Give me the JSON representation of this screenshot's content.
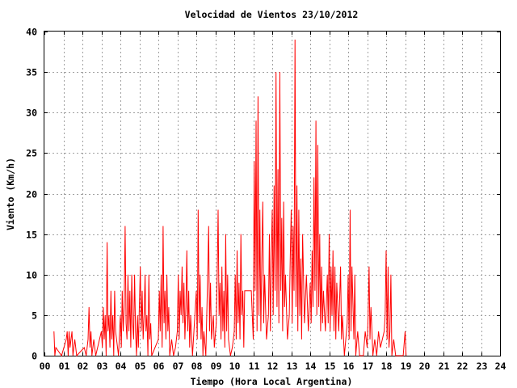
{
  "chart_data": {
    "type": "line",
    "title": "Velocidad de Vientos 23/10/2012",
    "xlabel": "Tiempo (Hora Local Argentina)",
    "ylabel": "Viento (Km/h)",
    "xlim": [
      0,
      24
    ],
    "ylim": [
      0,
      40
    ],
    "x_ticks": [
      "00",
      "01",
      "02",
      "03",
      "04",
      "05",
      "06",
      "07",
      "08",
      "09",
      "10",
      "11",
      "12",
      "13",
      "14",
      "15",
      "16",
      "17",
      "18",
      "19",
      "20",
      "21",
      "22",
      "23",
      "24"
    ],
    "y_ticks": [
      "0",
      "5",
      "10",
      "15",
      "20",
      "25",
      "30",
      "35",
      "40"
    ],
    "grid": true,
    "series": [
      {
        "color": "#ff0000",
        "points": [
          [
            0.5,
            3
          ],
          [
            0.55,
            0
          ],
          [
            0.6,
            1
          ],
          [
            0.9,
            0
          ],
          [
            1.15,
            2
          ],
          [
            1.2,
            3
          ],
          [
            1.25,
            0
          ],
          [
            1.3,
            3
          ],
          [
            1.35,
            1
          ],
          [
            1.4,
            2
          ],
          [
            1.45,
            3
          ],
          [
            1.5,
            0
          ],
          [
            1.6,
            2
          ],
          [
            1.7,
            0
          ],
          [
            2.1,
            1
          ],
          [
            2.2,
            0
          ],
          [
            2.3,
            2
          ],
          [
            2.35,
            6
          ],
          [
            2.4,
            1
          ],
          [
            2.45,
            3
          ],
          [
            2.5,
            0
          ],
          [
            2.6,
            2
          ],
          [
            2.7,
            0
          ],
          [
            3.0,
            3
          ],
          [
            3.05,
            1
          ],
          [
            3.1,
            6
          ],
          [
            3.15,
            2
          ],
          [
            3.2,
            5
          ],
          [
            3.25,
            0
          ],
          [
            3.3,
            14
          ],
          [
            3.35,
            3
          ],
          [
            3.4,
            5
          ],
          [
            3.45,
            1
          ],
          [
            3.5,
            8
          ],
          [
            3.55,
            2
          ],
          [
            3.6,
            5
          ],
          [
            3.65,
            0
          ],
          [
            3.7,
            8
          ],
          [
            3.75,
            3
          ],
          [
            3.8,
            2
          ],
          [
            3.9,
            0
          ],
          [
            4.0,
            5
          ],
          [
            4.05,
            1
          ],
          [
            4.1,
            8
          ],
          [
            4.15,
            3
          ],
          [
            4.2,
            6
          ],
          [
            4.25,
            16
          ],
          [
            4.3,
            4
          ],
          [
            4.35,
            2
          ],
          [
            4.4,
            10
          ],
          [
            4.45,
            3
          ],
          [
            4.5,
            8
          ],
          [
            4.55,
            1
          ],
          [
            4.6,
            10
          ],
          [
            4.65,
            4
          ],
          [
            4.7,
            2
          ],
          [
            4.75,
            10
          ],
          [
            4.8,
            3
          ],
          [
            4.85,
            0
          ],
          [
            4.9,
            5
          ],
          [
            4.95,
            1
          ],
          [
            5.0,
            6
          ],
          [
            5.05,
            11
          ],
          [
            5.1,
            3
          ],
          [
            5.15,
            8
          ],
          [
            5.2,
            2
          ],
          [
            5.25,
            5
          ],
          [
            5.3,
            10
          ],
          [
            5.35,
            3
          ],
          [
            5.4,
            5
          ],
          [
            5.45,
            0
          ],
          [
            5.5,
            10
          ],
          [
            5.55,
            2
          ],
          [
            5.6,
            4
          ],
          [
            5.65,
            0
          ],
          [
            6.0,
            2
          ],
          [
            6.05,
            8
          ],
          [
            6.1,
            3
          ],
          [
            6.15,
            10
          ],
          [
            6.2,
            1
          ],
          [
            6.25,
            16
          ],
          [
            6.3,
            4
          ],
          [
            6.35,
            8
          ],
          [
            6.4,
            2
          ],
          [
            6.45,
            10
          ],
          [
            6.5,
            3
          ],
          [
            6.55,
            6
          ],
          [
            6.6,
            0
          ],
          [
            6.7,
            2
          ],
          [
            6.8,
            0
          ],
          [
            6.9,
            1
          ],
          [
            7.0,
            3
          ],
          [
            7.05,
            10
          ],
          [
            7.1,
            2
          ],
          [
            7.15,
            8
          ],
          [
            7.2,
            5
          ],
          [
            7.25,
            11
          ],
          [
            7.3,
            4
          ],
          [
            7.35,
            9
          ],
          [
            7.4,
            2
          ],
          [
            7.45,
            6
          ],
          [
            7.5,
            13
          ],
          [
            7.55,
            3
          ],
          [
            7.6,
            8
          ],
          [
            7.65,
            1
          ],
          [
            7.7,
            5
          ],
          [
            7.8,
            0
          ],
          [
            8.0,
            8
          ],
          [
            8.05,
            2
          ],
          [
            8.1,
            18
          ],
          [
            8.15,
            4
          ],
          [
            8.2,
            10
          ],
          [
            8.25,
            2
          ],
          [
            8.3,
            6
          ],
          [
            8.35,
            0
          ],
          [
            8.4,
            3
          ],
          [
            8.5,
            0
          ],
          [
            8.6,
            10
          ],
          [
            8.65,
            16
          ],
          [
            8.7,
            3
          ],
          [
            8.75,
            9
          ],
          [
            8.8,
            2
          ],
          [
            8.9,
            5
          ],
          [
            8.95,
            1
          ],
          [
            9.05,
            4
          ],
          [
            9.1,
            10
          ],
          [
            9.15,
            18
          ],
          [
            9.2,
            5
          ],
          [
            9.25,
            9
          ],
          [
            9.3,
            2
          ],
          [
            9.35,
            11
          ],
          [
            9.4,
            3
          ],
          [
            9.45,
            8
          ],
          [
            9.5,
            1
          ],
          [
            9.55,
            15
          ],
          [
            9.6,
            3
          ],
          [
            9.65,
            10
          ],
          [
            9.7,
            2
          ],
          [
            9.8,
            0
          ],
          [
            9.9,
            1
          ],
          [
            10.0,
            3
          ],
          [
            10.05,
            10
          ],
          [
            10.1,
            2
          ],
          [
            10.15,
            13
          ],
          [
            10.2,
            4
          ],
          [
            10.25,
            9
          ],
          [
            10.3,
            2
          ],
          [
            10.35,
            15
          ],
          [
            10.4,
            5
          ],
          [
            10.45,
            8
          ],
          [
            10.5,
            1
          ],
          [
            10.55,
            8
          ],
          [
            10.6,
            8
          ],
          [
            10.7,
            8
          ],
          [
            10.8,
            8
          ],
          [
            10.9,
            8
          ],
          [
            11.0,
            2
          ],
          [
            11.05,
            24
          ],
          [
            11.1,
            8
          ],
          [
            11.15,
            29
          ],
          [
            11.2,
            3
          ],
          [
            11.25,
            32
          ],
          [
            11.3,
            5
          ],
          [
            11.35,
            18
          ],
          [
            11.4,
            3
          ],
          [
            11.45,
            12
          ],
          [
            11.5,
            19
          ],
          [
            11.55,
            4
          ],
          [
            11.6,
            10
          ],
          [
            11.7,
            2
          ],
          [
            11.8,
            5
          ],
          [
            11.85,
            15
          ],
          [
            11.9,
            3
          ],
          [
            11.95,
            12
          ],
          [
            12.0,
            18
          ],
          [
            12.05,
            5
          ],
          [
            12.1,
            21
          ],
          [
            12.15,
            8
          ],
          [
            12.2,
            35
          ],
          [
            12.25,
            6
          ],
          [
            12.3,
            23
          ],
          [
            12.35,
            4
          ],
          [
            12.4,
            35
          ],
          [
            12.45,
            8
          ],
          [
            12.5,
            17
          ],
          [
            12.55,
            3
          ],
          [
            12.6,
            19
          ],
          [
            12.65,
            6
          ],
          [
            12.7,
            10
          ],
          [
            12.8,
            2
          ],
          [
            12.9,
            5
          ],
          [
            12.95,
            12
          ],
          [
            13.0,
            18
          ],
          [
            13.05,
            4
          ],
          [
            13.1,
            16
          ],
          [
            13.15,
            8
          ],
          [
            13.2,
            39
          ],
          [
            13.25,
            6
          ],
          [
            13.3,
            21
          ],
          [
            13.35,
            3
          ],
          [
            13.4,
            18
          ],
          [
            13.45,
            5
          ],
          [
            13.5,
            12
          ],
          [
            13.55,
            2
          ],
          [
            13.6,
            15
          ],
          [
            13.7,
            4
          ],
          [
            13.8,
            10
          ],
          [
            13.9,
            3
          ],
          [
            14.0,
            9
          ],
          [
            14.05,
            4
          ],
          [
            14.1,
            13
          ],
          [
            14.15,
            6
          ],
          [
            14.2,
            22
          ],
          [
            14.25,
            8
          ],
          [
            14.3,
            29
          ],
          [
            14.35,
            5
          ],
          [
            14.4,
            26
          ],
          [
            14.45,
            6
          ],
          [
            14.5,
            15
          ],
          [
            14.55,
            3
          ],
          [
            14.6,
            11
          ],
          [
            14.65,
            4
          ],
          [
            14.7,
            8
          ],
          [
            14.8,
            3
          ],
          [
            14.9,
            10
          ],
          [
            14.95,
            4
          ],
          [
            15.0,
            15
          ],
          [
            15.05,
            3
          ],
          [
            15.1,
            11
          ],
          [
            15.15,
            5
          ],
          [
            15.2,
            13
          ],
          [
            15.25,
            3
          ],
          [
            15.3,
            11
          ],
          [
            15.35,
            2
          ],
          [
            15.4,
            9
          ],
          [
            15.5,
            3
          ],
          [
            15.6,
            11
          ],
          [
            15.65,
            2
          ],
          [
            15.7,
            5
          ],
          [
            15.8,
            0
          ],
          [
            15.95,
            4
          ],
          [
            16.0,
            10
          ],
          [
            16.05,
            2
          ],
          [
            16.1,
            18
          ],
          [
            16.15,
            3
          ],
          [
            16.2,
            11
          ],
          [
            16.3,
            2
          ],
          [
            16.35,
            10
          ],
          [
            16.4,
            0
          ],
          [
            16.5,
            3
          ],
          [
            16.6,
            0
          ],
          [
            16.8,
            0
          ],
          [
            16.9,
            3
          ],
          [
            17.0,
            1
          ],
          [
            17.05,
            5
          ],
          [
            17.1,
            11
          ],
          [
            17.15,
            2
          ],
          [
            17.2,
            6
          ],
          [
            17.3,
            0
          ],
          [
            17.4,
            2
          ],
          [
            17.5,
            0
          ],
          [
            17.6,
            3
          ],
          [
            17.7,
            1
          ],
          [
            17.8,
            2
          ],
          [
            17.9,
            3
          ],
          [
            17.95,
            5
          ],
          [
            18.0,
            13
          ],
          [
            18.05,
            2
          ],
          [
            18.1,
            11
          ],
          [
            18.15,
            1
          ],
          [
            18.2,
            3
          ],
          [
            18.25,
            10
          ],
          [
            18.3,
            0
          ],
          [
            18.4,
            2
          ],
          [
            18.5,
            0
          ],
          [
            18.9,
            0
          ],
          [
            19.0,
            3
          ],
          [
            19.05,
            0
          ]
        ]
      }
    ]
  }
}
